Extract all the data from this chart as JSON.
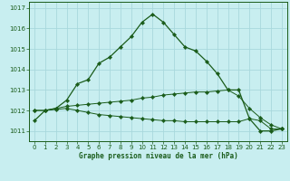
{
  "title": "Graphe pression niveau de la mer (hPa)",
  "background_color": "#c8eef0",
  "grid_color": "#a8d8dc",
  "line_color": "#1a5c1a",
  "xlim": [
    -0.5,
    23.5
  ],
  "ylim": [
    1010.5,
    1017.3
  ],
  "xticks": [
    0,
    1,
    2,
    3,
    4,
    5,
    6,
    7,
    8,
    9,
    10,
    11,
    12,
    13,
    14,
    15,
    16,
    17,
    18,
    19,
    20,
    21,
    22,
    23
  ],
  "yticks": [
    1011,
    1012,
    1013,
    1014,
    1015,
    1016,
    1017
  ],
  "curve1_x": [
    0,
    1,
    2,
    3,
    4,
    5,
    6,
    7,
    8,
    9,
    10,
    11,
    12,
    13,
    14,
    15,
    16,
    17,
    18,
    19,
    20,
    21,
    22,
    23
  ],
  "curve1_y": [
    1011.5,
    1012.0,
    1012.1,
    1012.5,
    1013.3,
    1013.5,
    1014.3,
    1014.6,
    1015.1,
    1015.6,
    1016.3,
    1016.7,
    1016.3,
    1015.7,
    1015.1,
    1014.9,
    1014.4,
    1013.8,
    1013.0,
    1013.0,
    1011.6,
    1011.0,
    1011.0,
    1011.1
  ],
  "curve2_x": [
    0,
    1,
    2,
    3,
    4,
    5,
    6,
    7,
    8,
    9,
    10,
    11,
    12,
    13,
    14,
    15,
    16,
    17,
    18,
    19,
    20,
    21,
    22,
    23
  ],
  "curve2_y": [
    1012.0,
    1012.0,
    1012.1,
    1012.2,
    1012.25,
    1012.3,
    1012.35,
    1012.4,
    1012.45,
    1012.5,
    1012.6,
    1012.65,
    1012.75,
    1012.8,
    1012.85,
    1012.9,
    1012.9,
    1012.95,
    1013.0,
    1012.7,
    1012.1,
    1011.65,
    1011.3,
    1011.1
  ],
  "curve3_x": [
    0,
    1,
    2,
    3,
    4,
    5,
    6,
    7,
    8,
    9,
    10,
    11,
    12,
    13,
    14,
    15,
    16,
    17,
    18,
    19,
    20,
    21,
    22,
    23
  ],
  "curve3_y": [
    1012.0,
    1012.0,
    1012.05,
    1012.1,
    1012.0,
    1011.9,
    1011.8,
    1011.75,
    1011.7,
    1011.65,
    1011.6,
    1011.55,
    1011.5,
    1011.5,
    1011.45,
    1011.45,
    1011.45,
    1011.45,
    1011.45,
    1011.45,
    1011.6,
    1011.5,
    1011.1,
    1011.1
  ]
}
